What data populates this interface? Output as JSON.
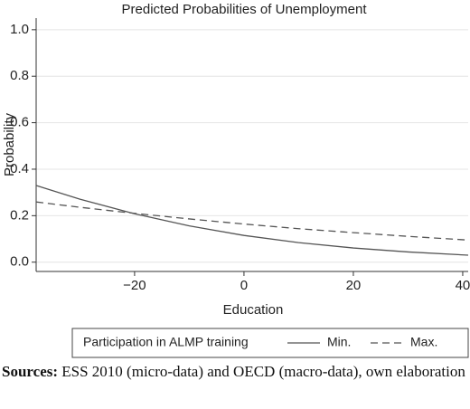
{
  "chart_data": {
    "type": "line",
    "title": "Predicted Probabilities of Unemployment",
    "xlabel": "Education",
    "ylabel": "Probability",
    "x": [
      -38,
      -30,
      -20,
      -10,
      0,
      10,
      20,
      30,
      41
    ],
    "series": [
      {
        "name": "Min.",
        "color": "#555555",
        "dash": "solid",
        "values": [
          0.33,
          0.271,
          0.208,
          0.156,
          0.115,
          0.084,
          0.061,
          0.044,
          0.03
        ]
      },
      {
        "name": "Max.",
        "color": "#555555",
        "dash": "dashed",
        "values": [
          0.259,
          0.236,
          0.21,
          0.186,
          0.164,
          0.144,
          0.127,
          0.111,
          0.095
        ]
      }
    ],
    "xlim": [
      -38,
      41
    ],
    "ylim": [
      -0.04,
      1.05
    ],
    "xticks": [
      {
        "value": -20,
        "label": "−20"
      },
      0,
      20,
      40
    ],
    "yticks": [
      {
        "value": 0,
        "label": "0.0"
      },
      {
        "value": 0.2,
        "label": "0.2"
      },
      {
        "value": 0.4,
        "label": "0.4"
      },
      {
        "value": 0.6,
        "label": "0.6"
      },
      {
        "value": 0.8,
        "label": "0.8"
      },
      {
        "value": 1,
        "label": "1.0"
      }
    ],
    "grid": true,
    "legend_title": "Participation in ALMP training",
    "legend": "bottom"
  },
  "source": {
    "label": "Sources:",
    "text": "ESS 2010 (micro-data) and OECD (macro-data), own elaboration"
  }
}
